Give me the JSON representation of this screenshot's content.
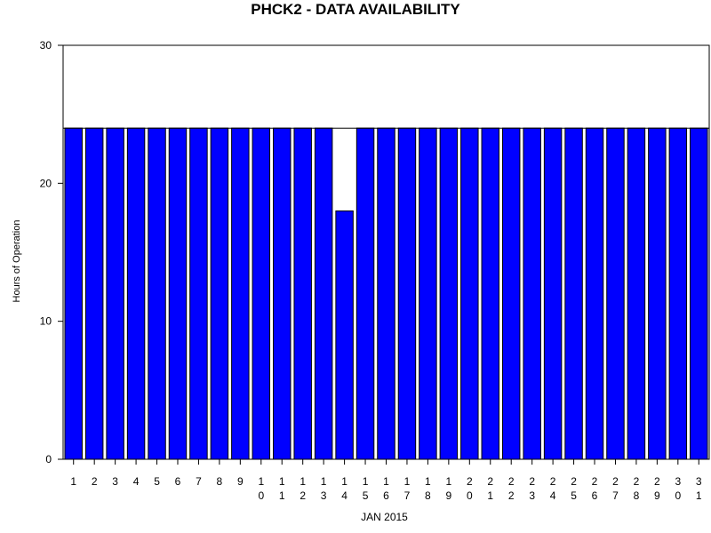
{
  "chart_data": {
    "type": "bar",
    "title": "PHCK2 - DATA AVAILABILITY",
    "xlabel": "JAN 2015",
    "ylabel": "Hours of Operation",
    "ylim": [
      0,
      30
    ],
    "yticks": [
      0,
      10,
      20,
      30
    ],
    "reference_line": 24,
    "grid": false,
    "categories": [
      "1",
      "2",
      "3",
      "4",
      "5",
      "6",
      "7",
      "8",
      "9",
      "10",
      "11",
      "12",
      "13",
      "14",
      "15",
      "16",
      "17",
      "18",
      "19",
      "20",
      "21",
      "22",
      "23",
      "24",
      "25",
      "26",
      "27",
      "28",
      "29",
      "30",
      "31"
    ],
    "values": [
      24,
      24,
      24,
      24,
      24,
      24,
      24,
      24,
      24,
      24,
      24,
      24,
      24,
      18,
      24,
      24,
      24,
      24,
      24,
      24,
      24,
      24,
      24,
      24,
      24,
      24,
      24,
      24,
      24,
      24,
      24
    ],
    "colors": {
      "bar": "#0000ff",
      "outline": "#000000",
      "reference_line": "#000000"
    }
  }
}
